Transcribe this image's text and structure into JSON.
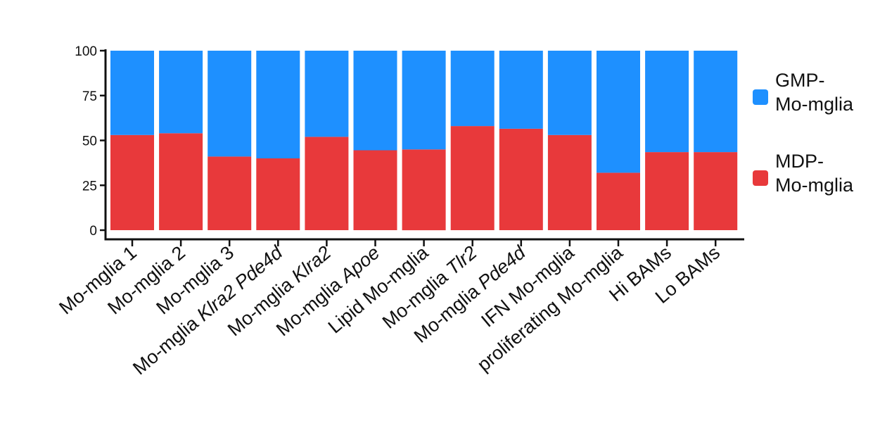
{
  "chart_data": {
    "type": "bar",
    "stacked": true,
    "categories": [
      {
        "plain": "Mo-mglia 1"
      },
      {
        "plain": "Mo-mglia 2"
      },
      {
        "plain": "Mo-mglia 3"
      },
      {
        "plain": "Mo-mglia ",
        "italic": "Klra2 Pde4d"
      },
      {
        "plain": "Mo-mglia ",
        "italic": "Klra2"
      },
      {
        "plain": "Mo-mglia ",
        "italic": "Apoe"
      },
      {
        "plain": "Lipid Mo-mglia"
      },
      {
        "plain": "Mo-mglia ",
        "italic": "Tlr2"
      },
      {
        "plain": "Mo-mglia ",
        "italic": "Pde4d"
      },
      {
        "plain": "IFN Mo-mglia"
      },
      {
        "plain": "proliferating Mo-mglia"
      },
      {
        "plain": "Hi BAMs"
      },
      {
        "plain": "Lo BAMs"
      }
    ],
    "series": [
      {
        "name": "MDP-Mo-mglia",
        "legend_lines": [
          "MDP-",
          "Mo-mglia"
        ],
        "color": "#E8393B",
        "values": [
          53,
          54,
          41,
          40,
          52,
          44.5,
          45,
          58,
          56.5,
          53,
          32,
          43.5,
          43.5
        ]
      },
      {
        "name": "GMP-Mo-mglia",
        "legend_lines": [
          "GMP-",
          "Mo-mglia"
        ],
        "color": "#1E90FF",
        "values": [
          47,
          46,
          59,
          60,
          48,
          55.5,
          55,
          42,
          43.5,
          47,
          68,
          56.5,
          56.5
        ]
      }
    ],
    "yticks": [
      "0",
      "25",
      "50",
      "75",
      "100"
    ],
    "ylim": [
      0,
      100
    ],
    "legend_position": "right",
    "grid": false
  }
}
